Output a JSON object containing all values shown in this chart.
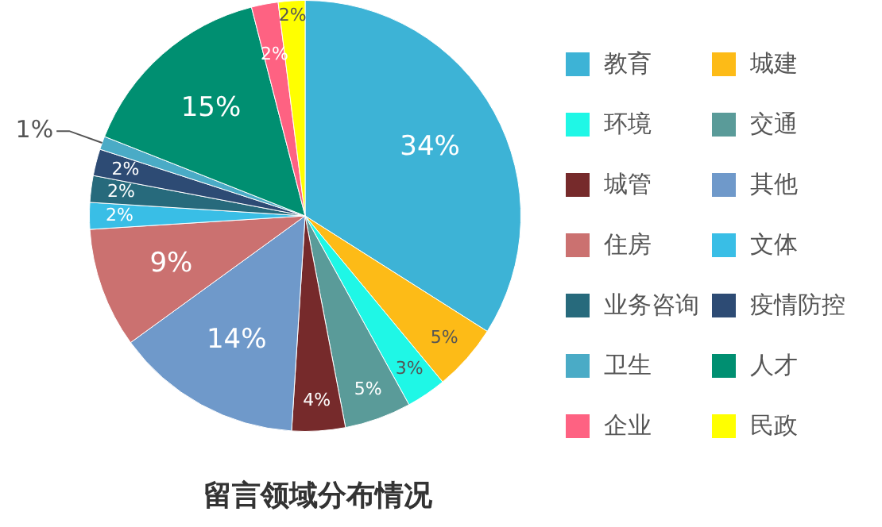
{
  "chart_data": {
    "type": "pie",
    "title": "留言领域分布情况",
    "categories": [
      "教育",
      "城建",
      "环境",
      "交通",
      "城管",
      "其他",
      "住房",
      "文体",
      "业务咨询",
      "疫情防控",
      "卫生",
      "人才",
      "企业",
      "民政"
    ],
    "values": [
      34,
      5,
      3,
      5,
      4,
      14,
      9,
      2,
      2,
      2,
      1,
      15,
      2,
      2
    ],
    "colors": [
      "#3db3d6",
      "#fdbb17",
      "#1ff7e6",
      "#5a9b99",
      "#762a2b",
      "#6f99ca",
      "#cb7170",
      "#39bee6",
      "#276a7c",
      "#2d4b74",
      "#4aabc6",
      "#008f71",
      "#fe6282",
      "#ffff00"
    ],
    "value_labels": [
      "34%",
      "5%",
      "3%",
      "5%",
      "4%",
      "14%",
      "9%",
      "2%",
      "2%",
      "2%",
      "1%",
      "15%",
      "2%",
      "2%"
    ],
    "legend": "right"
  }
}
